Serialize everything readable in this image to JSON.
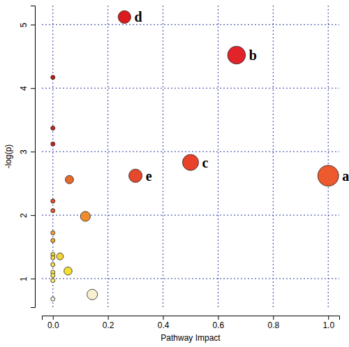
{
  "chart_data": {
    "type": "scatter",
    "x_label": "Pathway Impact",
    "y_label": "-log(p)",
    "x": [
      1.0,
      0.667,
      0.5,
      0.26,
      0.3,
      0.0,
      0.0,
      0.0,
      0.0,
      0.0,
      0.0,
      0.0,
      0.0,
      0.0,
      0.0,
      0.0,
      0.0,
      0.0,
      0.0,
      0.06,
      0.118,
      0.026,
      0.055,
      0.143
    ],
    "y": [
      2.62,
      4.52,
      2.83,
      5.12,
      2.62,
      4.17,
      3.37,
      3.12,
      2.22,
      2.07,
      1.72,
      1.6,
      1.38,
      1.33,
      1.22,
      1.1,
      1.05,
      0.97,
      0.68,
      2.56,
      1.98,
      1.35,
      1.12,
      0.75
    ],
    "sizes": [
      1.0,
      0.667,
      0.5,
      0.26,
      0.3,
      0.0,
      0.0,
      0.0,
      0.0,
      0.0,
      0.0,
      0.0,
      0.0,
      0.0,
      0.0,
      0.0,
      0.0,
      0.0,
      0.0,
      0.06,
      0.118,
      0.026,
      0.055,
      0.143
    ],
    "colors": [
      "#ec5a2e",
      "#e2242a",
      "#e8432a",
      "#dc1c1c",
      "#e5482b",
      "#c01818",
      "#cc1f1f",
      "#cc2020",
      "#e6502a",
      "#e65a28",
      "#f0a030",
      "#f2a830",
      "#f7d43a",
      "#f8d83c",
      "#fae04a",
      "#fbe456",
      "#fbe85a",
      "#fce86a",
      "#f6f0d6",
      "#e86a2a",
      "#f08c2c",
      "#f5d43a",
      "#f3e034",
      "#f8f0d0"
    ],
    "point_labels": [
      "a",
      "b",
      "c",
      "d",
      "e",
      null,
      null,
      null,
      null,
      null,
      null,
      null,
      null,
      null,
      null,
      null,
      null,
      null,
      null,
      null,
      null,
      null,
      null,
      null
    ],
    "xlim": [
      -0.04,
      1.04
    ],
    "ylim": [
      0.55,
      5.3
    ],
    "xticks": [
      {
        "value": 0,
        "label": "0.0"
      },
      {
        "value": 0.2,
        "label": "0.2"
      },
      {
        "value": 0.4,
        "label": "0.4"
      },
      {
        "value": 0.6,
        "label": "0.6"
      },
      {
        "value": 0.8,
        "label": "0.8"
      },
      {
        "value": 1,
        "label": "1.0"
      }
    ],
    "yticks": [
      1,
      2,
      3,
      4,
      5
    ],
    "grid": true
  }
}
